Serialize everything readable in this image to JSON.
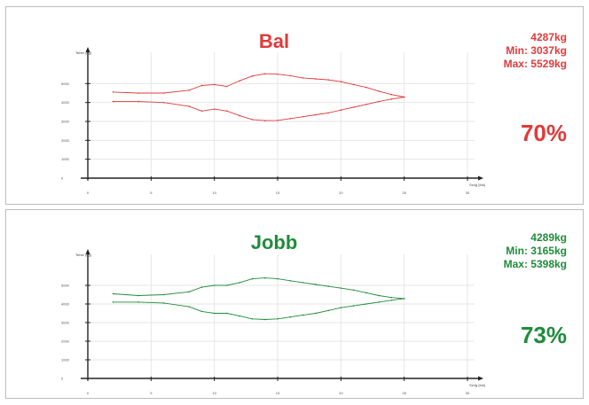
{
  "chart_data": [
    {
      "type": "line",
      "title": "Bal",
      "color": "#e03a3a",
      "stats": {
        "value": "4287kg",
        "min": "Min:  3037kg",
        "max": "Max: 5529kg"
      },
      "percentage": "70%",
      "ylabel": "Teher (kg)",
      "xlabel": "Szög (fok)",
      "xlim": [
        0,
        30
      ],
      "ylim": [
        0,
        6000
      ],
      "xticks": [
        0,
        5,
        10,
        15,
        20,
        25,
        30
      ],
      "yticks": [
        0,
        1000,
        2000,
        3000,
        4000,
        5000
      ],
      "grid": true,
      "series": [
        {
          "x": [
            2,
            4,
            6,
            8,
            9,
            10,
            11,
            12,
            13,
            14,
            15,
            16,
            17,
            18,
            19,
            20,
            21,
            22,
            23,
            24,
            25
          ],
          "values": [
            4550,
            4500,
            4500,
            4650,
            4900,
            4950,
            4850,
            5150,
            5400,
            5520,
            5500,
            5420,
            5300,
            5250,
            5200,
            5100,
            4950,
            4800,
            4600,
            4420,
            4287
          ]
        },
        {
          "x": [
            2,
            4,
            6,
            8,
            9,
            10,
            11,
            12,
            13,
            14,
            15,
            16,
            17,
            18,
            19,
            20,
            21,
            22,
            23,
            24,
            25
          ],
          "values": [
            4050,
            4050,
            4000,
            3800,
            3550,
            3650,
            3550,
            3300,
            3100,
            3040,
            3050,
            3150,
            3250,
            3350,
            3450,
            3600,
            3750,
            3900,
            4050,
            4180,
            4287
          ]
        }
      ]
    },
    {
      "type": "line",
      "title": "Jobb",
      "color": "#1e8c3a",
      "stats": {
        "value": "4289kg",
        "min": "Min:  3165kg",
        "max": "Max: 5398kg"
      },
      "percentage": "73%",
      "ylabel": "Teher (kg)",
      "xlabel": "Szög (fok)",
      "xlim": [
        0,
        30
      ],
      "ylim": [
        0,
        6000
      ],
      "xticks": [
        0,
        5,
        10,
        15,
        20,
        25,
        30
      ],
      "yticks": [
        0,
        1000,
        2000,
        3000,
        4000,
        5000
      ],
      "grid": true,
      "series": [
        {
          "x": [
            2,
            4,
            6,
            8,
            9,
            10,
            11,
            12,
            13,
            14,
            15,
            16,
            17,
            18,
            19,
            20,
            21,
            22,
            23,
            24,
            25
          ],
          "values": [
            4550,
            4450,
            4500,
            4650,
            4900,
            5000,
            5000,
            5150,
            5350,
            5398,
            5350,
            5250,
            5150,
            5050,
            4950,
            4850,
            4750,
            4600,
            4450,
            4350,
            4289
          ]
        },
        {
          "x": [
            2,
            4,
            6,
            8,
            9,
            10,
            11,
            12,
            13,
            14,
            15,
            16,
            17,
            18,
            19,
            20,
            21,
            22,
            23,
            24,
            25
          ],
          "values": [
            4100,
            4100,
            4050,
            3850,
            3600,
            3500,
            3500,
            3350,
            3200,
            3165,
            3200,
            3300,
            3400,
            3500,
            3650,
            3800,
            3900,
            4000,
            4100,
            4200,
            4289
          ]
        }
      ]
    }
  ]
}
